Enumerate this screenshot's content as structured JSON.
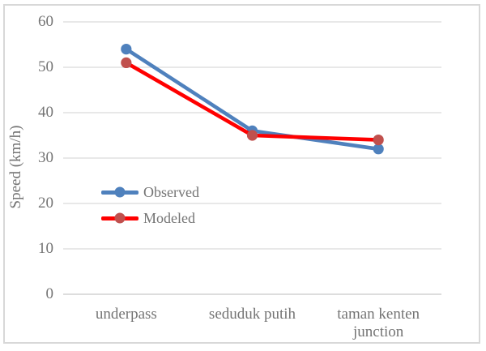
{
  "window": {
    "background_color": "#FFFFFF",
    "border_color": "#D8D8D8"
  },
  "chart_data": {
    "type": "line",
    "title": "",
    "categories": [
      "underpass",
      "seduduk putih",
      "taman kenten junction"
    ],
    "series": [
      {
        "name": "Observed",
        "values": [
          54,
          36,
          32
        ],
        "line_color": "#4F81BD",
        "marker_color": "#4F81BD"
      },
      {
        "name": "Modeled",
        "values": [
          51,
          35,
          34
        ],
        "line_color": "#FF0000",
        "marker_color": "#C0504D"
      }
    ],
    "xlabel": "",
    "ylabel": "Speed (km/h)",
    "ylim": [
      0,
      60
    ],
    "yticks": [
      0,
      10,
      20,
      30,
      40,
      50,
      60
    ],
    "grid": true,
    "gridline_color": "#D9D9D9",
    "axis_line_color": "#D2D2D2",
    "text_color": "#747474",
    "legend": {
      "position": "inside-center-left",
      "entries": [
        "Observed",
        "Modeled"
      ]
    }
  }
}
